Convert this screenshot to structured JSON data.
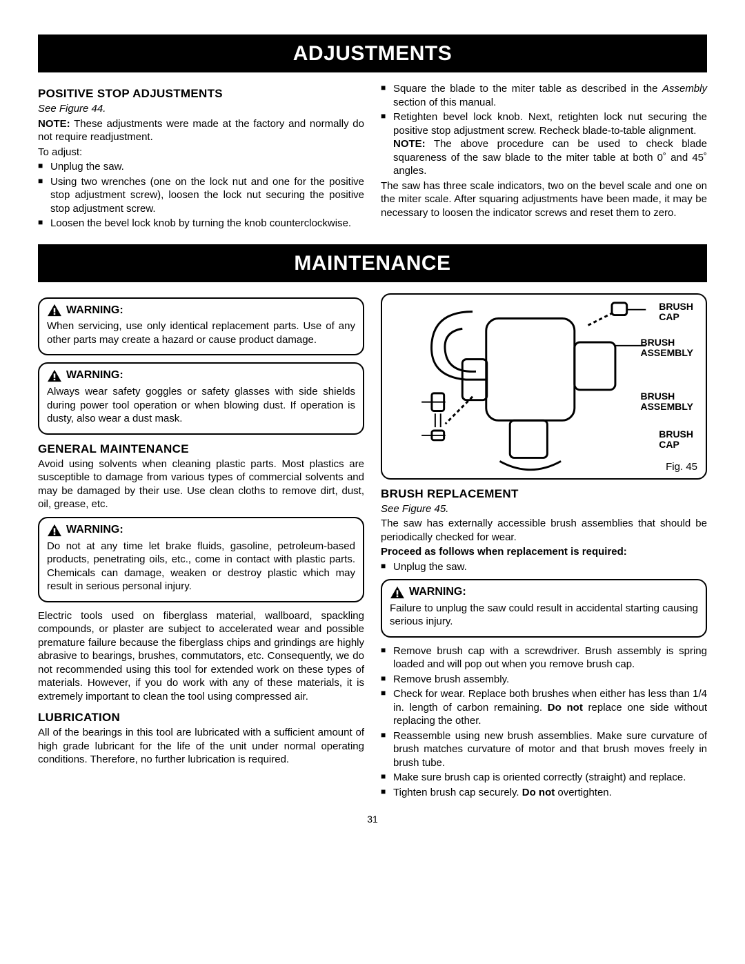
{
  "banner1": "ADJUSTMENTS",
  "banner2": "MAINTENANCE",
  "page_number": "31",
  "adjustments": {
    "left": {
      "title": "POSITIVE STOP ADJUSTMENTS",
      "see": "See Figure 44.",
      "note_label": "NOTE:",
      "note_text": " These adjustments were made at the factory and normally do not require readjustment.",
      "to_adjust": "To adjust:",
      "bullets": [
        "Unplug the saw.",
        "Using two wrenches (one on the lock nut and one for the positive stop adjustment screw), loosen the lock nut securing the positive stop adjustment screw.",
        "Loosen the bevel lock knob by turning the knob counterclockwise."
      ]
    },
    "right": {
      "bullets_a": [
        "Square the blade to the miter table as described in the Assembly section of this manual."
      ],
      "bullet_b_pre": "Retighten bevel lock knob. Next, retighten lock nut securing the positive stop adjustment screw. Recheck blade-to-table alignment.",
      "note_label": "NOTE:",
      "note_text": " The above procedure can be used to check blade squareness of the saw blade to the miter table at both 0˚ and 45˚ angles.",
      "after": "The saw has three scale indicators, two on the bevel scale and one on the miter scale. After squaring adjustments have been made, it may be necessary to loosen the indicator screws and reset them to zero."
    }
  },
  "maintenance": {
    "warning_label": "WARNING:",
    "warn1": "When servicing, use only identical replacement parts. Use of any other parts may create a hazard or cause product damage.",
    "warn2": "Always wear safety goggles or safety glasses with side shields during power tool operation or when blowing dust. If operation is dusty, also wear a dust mask.",
    "gen_title": "GENERAL MAINTENANCE",
    "gen_p": "Avoid using solvents when cleaning plastic parts. Most plastics are susceptible to damage from various types of commercial solvents and may be damaged by their use. Use clean cloths to remove dirt, dust, oil, grease, etc.",
    "warn3": "Do not at any time let brake fluids, gasoline, petroleum-based products, penetrating oils, etc., come in contact with plastic parts. Chemicals can damage, weaken or destroy plastic which may result in serious personal injury.",
    "fiberglass": "Electric tools used on fiberglass material, wallboard, spackling compounds, or plaster are subject to accelerated wear and possible premature failure because the fiberglass chips and grindings are highly abrasive to bearings, brushes, commutators, etc. Consequently, we do not recommended using this tool for extended work on these types of materials. However, if you do work with any of these materials, it is extremely important to clean the tool using compressed air.",
    "lub_title": "LUBRICATION",
    "lub_p": "All of the bearings in this tool are lubricated with a sufficient amount of high grade lubricant for the life of the unit under normal operating conditions. Therefore, no further lubrication is required.",
    "fig45": "Fig. 45",
    "labels": {
      "bc1": "BRUSH\nCAP",
      "ba1": "BRUSH\nASSEMBLY",
      "ba2": "BRUSH\nASSEMBLY",
      "bc2": "BRUSH\nCAP"
    },
    "brush_title": "BRUSH REPLACEMENT",
    "brush_see": "See Figure 45.",
    "brush_intro": "The saw has externally accessible brush assemblies that should be periodically checked for wear.",
    "proceed": "Proceed as follows when replacement is required:",
    "b_unplug": "Unplug the saw.",
    "warn4": "Failure to unplug the saw could result in accidental starting causing serious injury.",
    "brush_bullets": [
      "Remove brush cap with a screwdriver. Brush assembly is spring loaded and will pop out when you remove brush cap.",
      "Remove brush assembly.",
      "Check for wear. Replace both brushes when either has less than 1/4 in. length of carbon remaining. <b>Do not</b> replace one side without replacing the other.",
      "Reassemble using new brush assemblies. Make sure curvature of brush matches curvature of motor and that brush moves freely in brush tube.",
      "Make sure brush cap is oriented correctly (straight) and replace.",
      "Tighten brush cap securely. <b>Do not</b> overtighten."
    ]
  }
}
